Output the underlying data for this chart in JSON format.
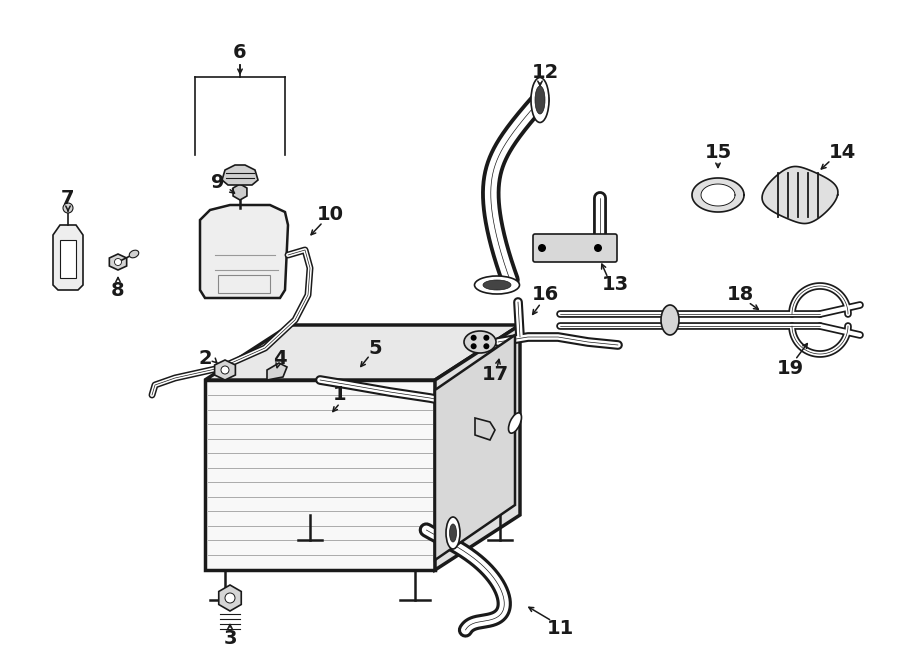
{
  "bg": "#ffffff",
  "lc": "#1a1a1a",
  "fw": 9.0,
  "fh": 6.61,
  "dpi": 100
}
